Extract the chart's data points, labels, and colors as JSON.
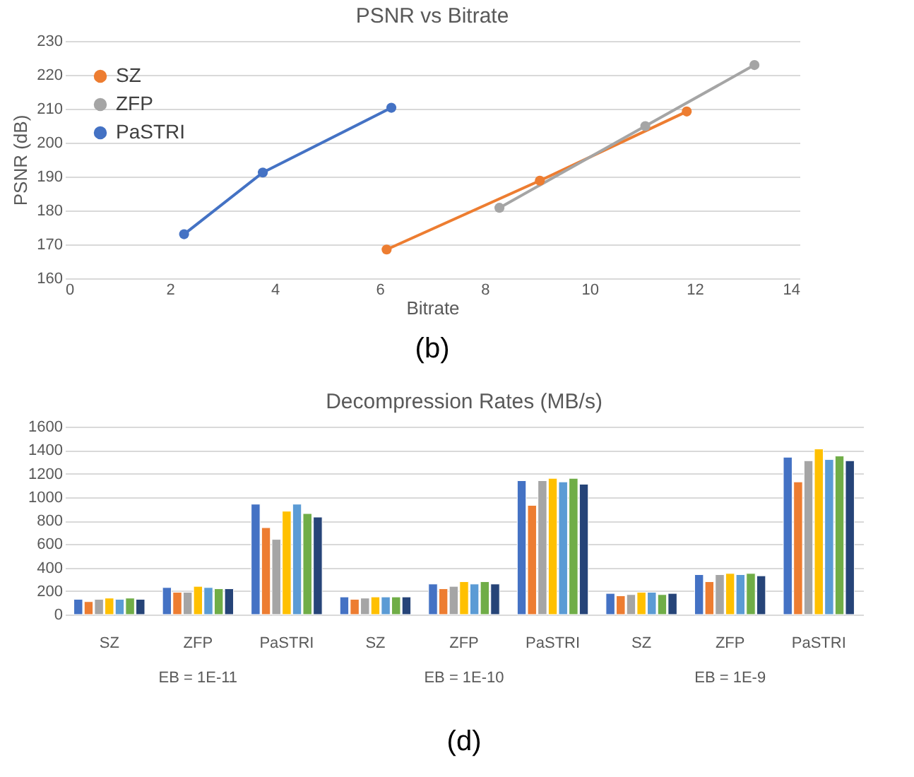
{
  "chart_data": [
    {
      "type": "line",
      "title": "PSNR vs Bitrate",
      "xlabel": "Bitrate",
      "ylabel": "PSNR (dB)",
      "xlim": [
        0,
        14
      ],
      "xticks": [
        0,
        2,
        4,
        6,
        8,
        10,
        12,
        14
      ],
      "ylim": [
        160,
        230
      ],
      "yticks": [
        160,
        170,
        180,
        190,
        200,
        210,
        220,
        230
      ],
      "grid": "y",
      "legend": "top left",
      "marker": "circle",
      "line_style": "solid",
      "annotations": [
        "(b)"
      ],
      "series": [
        {
          "name": "SZ",
          "color": "#ed7d31",
          "x": [
            6.13,
            9.05,
            11.85
          ],
          "values": [
            168.5,
            188.8,
            209.2
          ]
        },
        {
          "name": "ZFP",
          "color": "#a5a5a5",
          "x": [
            8.28,
            11.06,
            13.14
          ],
          "values": [
            180.8,
            204.9,
            222.9
          ]
        },
        {
          "name": "PaSTRI",
          "color": "#4472c4",
          "x": [
            2.27,
            3.77,
            6.22
          ],
          "values": [
            173,
            191.2,
            210.3
          ]
        }
      ]
    },
    {
      "type": "bar",
      "title": "Decompression Rates (MB/s)",
      "categories": [
        "SZ",
        "ZFP",
        "PaSTRI",
        "SZ",
        "ZFP",
        "PaSTRI",
        "SZ",
        "ZFP",
        "PaSTRI"
      ],
      "ylim": [
        0,
        1600
      ],
      "yticks": [
        0,
        200,
        400,
        600,
        800,
        1000,
        1200,
        1400,
        1600
      ],
      "grid": "y",
      "annotations": [
        "EB = 1E-11",
        "EB = 1E-10",
        "EB = 1E-9",
        "(d)"
      ],
      "series": [
        {
          "color": "#4472c4",
          "values": [
            130,
            230,
            940,
            150,
            260,
            1140,
            180,
            340,
            1340
          ]
        },
        {
          "color": "#ed7d31",
          "values": [
            110,
            190,
            740,
            130,
            220,
            930,
            160,
            280,
            1130
          ]
        },
        {
          "color": "#a5a5a5",
          "values": [
            130,
            190,
            640,
            140,
            240,
            1140,
            170,
            340,
            1310
          ]
        },
        {
          "color": "#ffc000",
          "values": [
            140,
            240,
            880,
            150,
            280,
            1160,
            190,
            350,
            1410
          ]
        },
        {
          "color": "#5b9bd5",
          "values": [
            130,
            230,
            940,
            150,
            260,
            1130,
            190,
            340,
            1320
          ]
        },
        {
          "color": "#70ad47",
          "values": [
            140,
            220,
            860,
            150,
            280,
            1160,
            170,
            350,
            1350
          ]
        },
        {
          "color": "#264478",
          "values": [
            130,
            220,
            830,
            150,
            260,
            1110,
            180,
            330,
            1310
          ]
        }
      ]
    }
  ]
}
